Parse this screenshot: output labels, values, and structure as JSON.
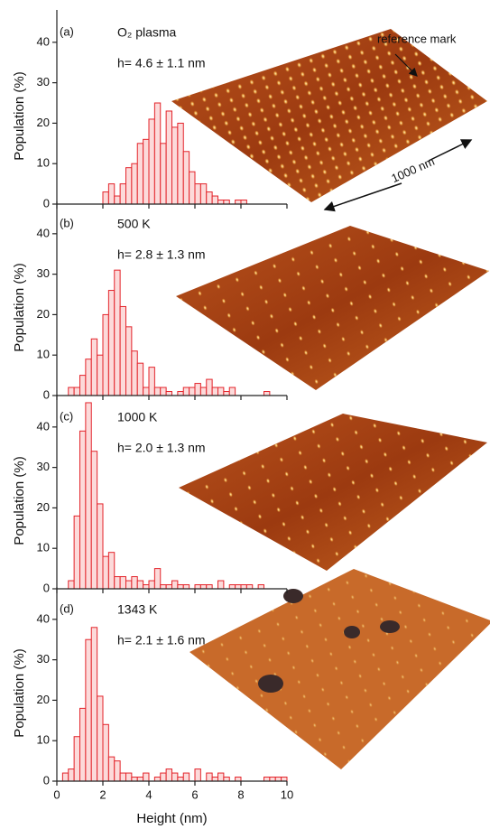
{
  "chart_data": [
    {
      "type": "histogram",
      "panel": "(a)",
      "title": "O₂ plasma",
      "annotation": "h= 4.6 ± 1.1 nm",
      "notes": [
        "reference mark",
        "1000 nm"
      ],
      "ylabel": "Population (%)",
      "color": "#e3242b",
      "bar_fill": "#fcdada",
      "bins": [
        0,
        0.25,
        0.5,
        0.75,
        1,
        1.25,
        1.5,
        1.75,
        2,
        2.25,
        2.5,
        2.75,
        3,
        3.25,
        3.5,
        3.75,
        4,
        4.25,
        4.5,
        4.75,
        5,
        5.25,
        5.5,
        5.75,
        6,
        6.25,
        6.5,
        6.75,
        7,
        7.25,
        7.5,
        7.75,
        8,
        8.25,
        8.5,
        8.75,
        9,
        9.25,
        9.5,
        9.75,
        10
      ],
      "values": [
        0,
        0,
        0,
        0,
        0,
        0,
        0,
        0,
        3,
        5,
        2,
        5,
        9,
        10,
        15,
        16,
        21,
        25,
        15,
        23,
        19,
        20,
        13,
        8,
        5,
        5,
        3,
        2,
        1,
        1,
        0,
        1,
        1,
        0,
        0,
        0,
        0,
        0,
        0,
        0
      ],
      "xlim": [
        0,
        10
      ],
      "xticks": [
        0,
        2,
        4,
        6,
        8,
        10
      ],
      "ylim": [
        0,
        48
      ],
      "yticks": [
        0,
        10,
        20,
        30,
        40
      ]
    },
    {
      "type": "histogram",
      "panel": "(b)",
      "title": "500 K",
      "annotation": "h= 2.8 ± 1.3 nm",
      "ylabel": "Population (%)",
      "color": "#e3242b",
      "bar_fill": "#fcdada",
      "bins": [
        0,
        0.25,
        0.5,
        0.75,
        1,
        1.25,
        1.5,
        1.75,
        2,
        2.25,
        2.5,
        2.75,
        3,
        3.25,
        3.5,
        3.75,
        4,
        4.25,
        4.5,
        4.75,
        5,
        5.25,
        5.5,
        5.75,
        6,
        6.25,
        6.5,
        6.75,
        7,
        7.25,
        7.5,
        7.75,
        8,
        8.25,
        8.5,
        8.75,
        9,
        9.25,
        9.5,
        9.75,
        10
      ],
      "values": [
        0,
        0,
        2,
        2,
        5,
        9,
        14,
        10,
        20,
        26,
        31,
        22,
        17,
        11,
        8,
        2,
        7,
        2,
        2,
        1,
        0,
        1,
        2,
        2,
        3,
        2,
        4,
        2,
        2,
        1,
        2,
        0,
        0,
        0,
        0,
        0,
        1,
        0,
        0,
        0
      ],
      "xlim": [
        0,
        10
      ],
      "xticks": [
        0,
        2,
        4,
        6,
        8,
        10
      ],
      "ylim": [
        0,
        48
      ],
      "yticks": [
        0,
        10,
        20,
        30,
        40
      ]
    },
    {
      "type": "histogram",
      "panel": "(c)",
      "title": "1000 K",
      "annotation": "h= 2.0 ± 1.3 nm",
      "ylabel": "Population (%)",
      "color": "#e3242b",
      "bar_fill": "#fcdada",
      "bins": [
        0,
        0.25,
        0.5,
        0.75,
        1,
        1.25,
        1.5,
        1.75,
        2,
        2.25,
        2.5,
        2.75,
        3,
        3.25,
        3.5,
        3.75,
        4,
        4.25,
        4.5,
        4.75,
        5,
        5.25,
        5.5,
        5.75,
        6,
        6.25,
        6.5,
        6.75,
        7,
        7.25,
        7.5,
        7.75,
        8,
        8.25,
        8.5,
        8.75,
        9,
        9.25,
        9.5,
        9.75,
        10
      ],
      "values": [
        0,
        0,
        2,
        18,
        39,
        46,
        34,
        21,
        8,
        9,
        3,
        3,
        2,
        3,
        2,
        1,
        2,
        5,
        1,
        1,
        2,
        1,
        1,
        0,
        1,
        1,
        1,
        0,
        2,
        0,
        1,
        1,
        1,
        1,
        0,
        1,
        0,
        0,
        0,
        0
      ],
      "xlim": [
        0,
        10
      ],
      "xticks": [
        0,
        2,
        4,
        6,
        8,
        10
      ],
      "ylim": [
        0,
        48
      ],
      "yticks": [
        0,
        10,
        20,
        30,
        40
      ]
    },
    {
      "type": "histogram",
      "panel": "(d)",
      "title": "1343 K",
      "annotation": "h= 2.1 ± 1.6 nm",
      "ylabel": "Population (%)",
      "xlabel": "Height (nm)",
      "color": "#e3242b",
      "bar_fill": "#fcdada",
      "bins": [
        0,
        0.25,
        0.5,
        0.75,
        1,
        1.25,
        1.5,
        1.75,
        2,
        2.25,
        2.5,
        2.75,
        3,
        3.25,
        3.5,
        3.75,
        4,
        4.25,
        4.5,
        4.75,
        5,
        5.25,
        5.5,
        5.75,
        6,
        6.25,
        6.5,
        6.75,
        7,
        7.25,
        7.5,
        7.75,
        8,
        8.25,
        8.5,
        8.75,
        9,
        9.25,
        9.5,
        9.75,
        10
      ],
      "values": [
        0,
        2,
        3,
        11,
        18,
        35,
        38,
        21,
        14,
        6,
        5,
        2,
        2,
        1,
        1,
        2,
        0,
        1,
        2,
        3,
        2,
        1,
        2,
        0,
        3,
        0,
        2,
        1,
        2,
        1,
        0,
        1,
        0,
        0,
        0,
        0,
        1,
        1,
        1,
        1
      ],
      "xlim": [
        0,
        10
      ],
      "xticks": [
        0,
        2,
        4,
        6,
        8,
        10
      ],
      "ylim": [
        0,
        48
      ],
      "yticks": [
        0,
        10,
        20,
        30,
        40
      ],
      "xtick_labels": true
    }
  ]
}
